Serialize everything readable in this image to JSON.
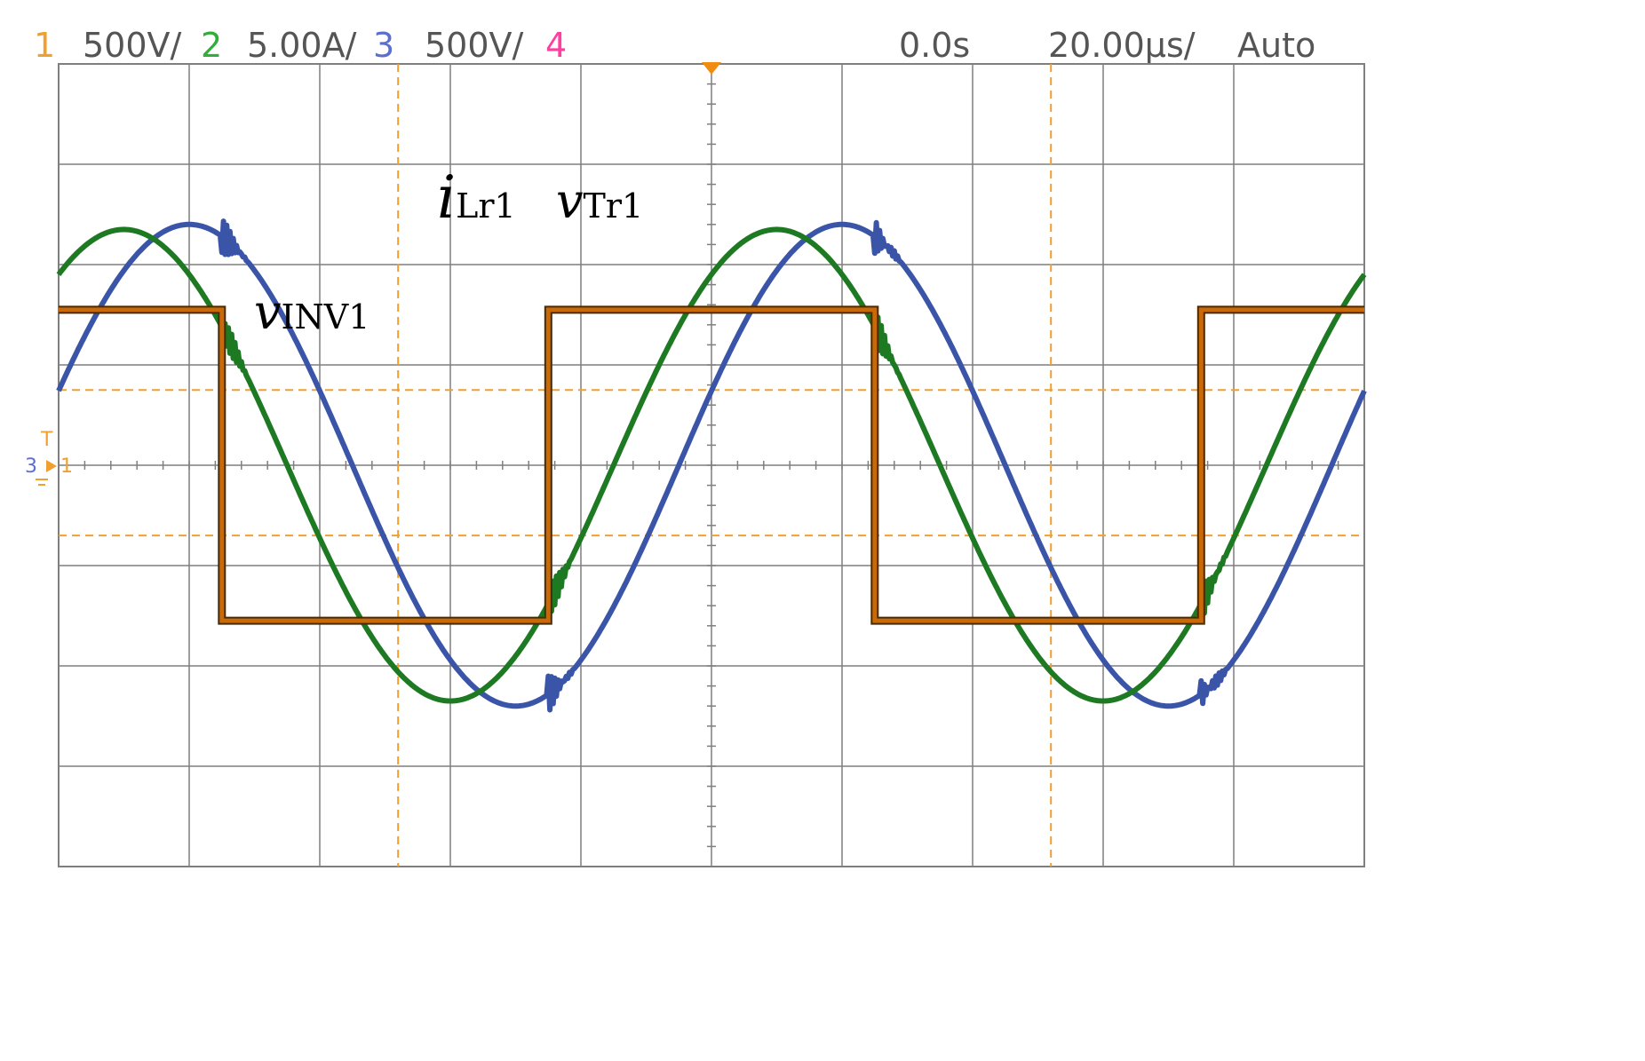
{
  "status_bar": {
    "ch1_num": "1",
    "ch1_scale": "500V/",
    "ch2_num": "2",
    "ch2_scale": "5.00A/",
    "ch3_num": "3",
    "ch3_scale": "500V/",
    "ch4_num": "4",
    "time_position": "0.0s",
    "time_scale": "20.00µs/",
    "trigger_mode": "Auto"
  },
  "markers": {
    "trigger": "T",
    "ch3_ground": "3",
    "ch1_ground": "1"
  },
  "chart_data": {
    "type": "line",
    "title": "",
    "grid": true,
    "divisions": {
      "x": 10,
      "y": 8
    },
    "time_per_div_us": 20,
    "x_range_us": [
      -100,
      100
    ],
    "period_us": 100,
    "series": [
      {
        "name": "vINV1",
        "label_main": "v",
        "label_sub": "INV1",
        "color": "#c8690a",
        "style": "square",
        "high_div": 1.55,
        "low_div": -1.55,
        "rise_us": -25,
        "fall_us": 25
      },
      {
        "name": "iLr1",
        "label_main": "i",
        "label_sub": "Lr1",
        "color": "#1e7a22",
        "style": "sine",
        "amplitude_div": 2.35,
        "peak_us": 10,
        "flat_after_fall_div": 0.5
      },
      {
        "name": "vTr1",
        "label_main": "v",
        "label_sub": "Tr1",
        "color": "#3a55a8",
        "style": "sine",
        "amplitude_div": 2.4,
        "peak_us": 20
      }
    ],
    "cursors": {
      "time_us": [
        -48,
        52
      ],
      "level_div": [
        0.75,
        -0.7
      ]
    },
    "colors": {
      "ch1": "#f0a030",
      "ch2": "#2fae3a",
      "ch3": "#5a6fd0",
      "ch4": "#ff3fa0",
      "grid": "#7f7f7f",
      "cursor": "#f0a030",
      "trigger_marker": "#f08c10"
    }
  }
}
